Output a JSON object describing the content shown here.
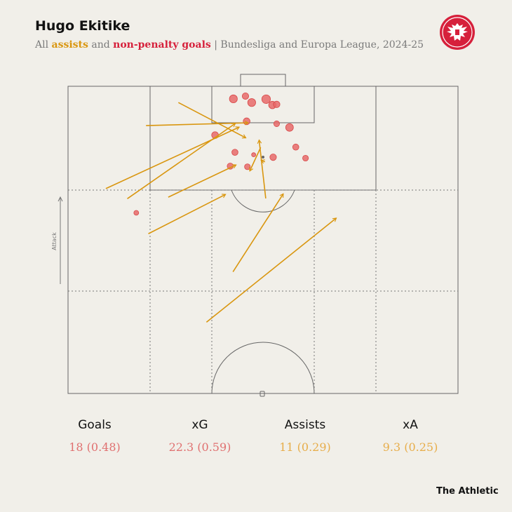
{
  "header": {
    "title": "Hugo Ekitike",
    "subtitle_prefix": "All ",
    "subtitle_assists": "assists",
    "subtitle_and": " and ",
    "subtitle_goals": "non-penalty goals",
    "subtitle_suffix": " | Bundesliga and Europa League, 2024-25"
  },
  "colors": {
    "background": "#f1efe9",
    "assist": "#d9960f",
    "goal": "#e86a6a",
    "goal_stroke": "#d84848",
    "line": "#666666",
    "logo_red": "#d6203b"
  },
  "icons": {
    "logo": "eintracht-frankfurt-eagle-crest",
    "attack": "arrow-up-icon"
  },
  "pitch": {
    "attack_label": "Attack"
  },
  "chart_data": {
    "type": "scatter",
    "x_range": [
      0,
      100
    ],
    "y_range": [
      0,
      100
    ],
    "goals": [
      {
        "x": 42.4,
        "y": 95.9,
        "size": 0.55
      },
      {
        "x": 45.5,
        "y": 96.8,
        "size": 0.3
      },
      {
        "x": 47.1,
        "y": 94.7,
        "size": 0.55
      },
      {
        "x": 50.8,
        "y": 95.8,
        "size": 0.7
      },
      {
        "x": 52.4,
        "y": 93.9,
        "size": 0.45
      },
      {
        "x": 53.5,
        "y": 94.1,
        "size": 0.3
      },
      {
        "x": 45.8,
        "y": 88.6,
        "size": 0.35
      },
      {
        "x": 37.7,
        "y": 84.1,
        "size": 0.35
      },
      {
        "x": 53.5,
        "y": 87.8,
        "size": 0.2
      },
      {
        "x": 56.8,
        "y": 86.6,
        "size": 0.5
      },
      {
        "x": 58.4,
        "y": 80.2,
        "size": 0.25
      },
      {
        "x": 42.8,
        "y": 78.5,
        "size": 0.25
      },
      {
        "x": 52.6,
        "y": 76.9,
        "size": 0.3
      },
      {
        "x": 60.9,
        "y": 76.6,
        "size": 0.2
      },
      {
        "x": 41.6,
        "y": 74.0,
        "size": 0.25
      },
      {
        "x": 46.0,
        "y": 73.8,
        "size": 0.2
      },
      {
        "x": 47.6,
        "y": 77.7,
        "size": 0.05
      },
      {
        "x": 17.5,
        "y": 58.8,
        "size": 0.1
      }
    ],
    "assists": [
      {
        "x1": 28.3,
        "y1": 94.7,
        "x2": 45.6,
        "y2": 83.2
      },
      {
        "x1": 20.0,
        "y1": 87.2,
        "x2": 46.2,
        "y2": 88.1
      },
      {
        "x1": 9.7,
        "y1": 66.7,
        "x2": 43.9,
        "y2": 86.7
      },
      {
        "x1": 15.2,
        "y1": 63.4,
        "x2": 42.9,
        "y2": 87.9
      },
      {
        "x1": 50.7,
        "y1": 63.5,
        "x2": 49.0,
        "y2": 82.5
      },
      {
        "x1": 49.4,
        "y1": 80.1,
        "x2": 46.6,
        "y2": 72.4
      },
      {
        "x1": 20.6,
        "y1": 52.0,
        "x2": 40.4,
        "y2": 64.8
      },
      {
        "x1": 42.3,
        "y1": 39.6,
        "x2": 55.2,
        "y2": 65.0
      },
      {
        "x1": 35.5,
        "y1": 23.2,
        "x2": 68.8,
        "y2": 57.1
      },
      {
        "x1": 25.7,
        "y1": 63.9,
        "x2": 43.1,
        "y2": 74.4
      },
      {
        "x1": 50.5,
        "y1": 75.4,
        "x2": 49.5,
        "y2": 75.9
      }
    ]
  },
  "stats": [
    {
      "label": "Goals",
      "value": "18 (0.48)",
      "kind": "goal"
    },
    {
      "label": "xG",
      "value": "22.3 (0.59)",
      "kind": "goal"
    },
    {
      "label": "Assists",
      "value": "11 (0.29)",
      "kind": "assist"
    },
    {
      "label": "xA",
      "value": "9.3 (0.25)",
      "kind": "assist"
    }
  ],
  "brand": "The Athletic"
}
